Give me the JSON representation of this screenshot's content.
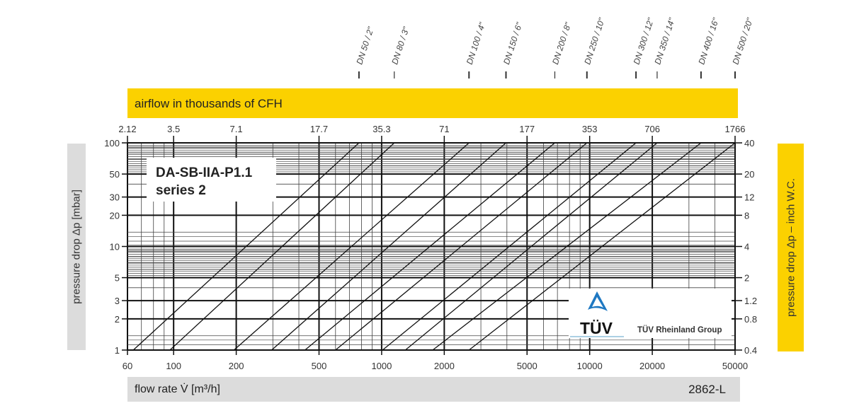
{
  "header": {
    "top_axis_title": "airflow in thousands of CFH"
  },
  "footer": {
    "x_axis_title": "flow rate V̇ [m³/h]",
    "code": "2862-L"
  },
  "logo": {
    "mark": "TÜV",
    "text": "TÜV Rheinland Group",
    "color": "#1e78c2"
  },
  "colors": {
    "accent_yellow": "#fbd100",
    "label_grey": "#dcdcdc"
  },
  "chart_data": {
    "type": "line",
    "title": "DA-SB-IIA-P1.1",
    "subtitle": "series 2",
    "xlabel": "flow rate V̇ [m³/h]",
    "ylabel": "pressure drop Δp [mbar]",
    "y2label": "pressure drop Δp – inch W.C.",
    "x2label": "airflow in thousands of CFH",
    "xscale": "log",
    "yscale": "log",
    "xlim": [
      60,
      50000
    ],
    "ylim": [
      1,
      100
    ],
    "grid": true,
    "x_ticks": [
      60,
      100,
      200,
      500,
      1000,
      2000,
      5000,
      10000,
      20000,
      50000
    ],
    "y_ticks": [
      1,
      2,
      3,
      5,
      10,
      20,
      30,
      50,
      100
    ],
    "x2_ticks": [
      {
        "label": "2.12",
        "at": 60
      },
      {
        "label": "3.5",
        "at": 100
      },
      {
        "label": "7.1",
        "at": 200
      },
      {
        "label": "17.7",
        "at": 500
      },
      {
        "label": "35.3",
        "at": 1000
      },
      {
        "label": "71",
        "at": 2000
      },
      {
        "label": "177",
        "at": 5000
      },
      {
        "label": "353",
        "at": 10000
      },
      {
        "label": "706",
        "at": 20000
      },
      {
        "label": "1766",
        "at": 50000
      }
    ],
    "y2_ticks": [
      {
        "label": "0.4",
        "at": 1
      },
      {
        "label": "0.8",
        "at": 2
      },
      {
        "label": "1.2",
        "at": 3
      },
      {
        "label": "2",
        "at": 5
      },
      {
        "label": "4",
        "at": 10
      },
      {
        "label": "8",
        "at": 20
      },
      {
        "label": "12",
        "at": 30
      },
      {
        "label": "20",
        "at": 50
      },
      {
        "label": "40",
        "at": 100
      }
    ],
    "series": [
      {
        "name": "DN 50 / 2\"",
        "points": [
          [
            64,
            1
          ],
          [
            778,
            100
          ]
        ]
      },
      {
        "name": "DN 80 / 3\"",
        "points": [
          [
            96,
            1
          ],
          [
            1150,
            100
          ]
        ]
      },
      {
        "name": "DN 100 / 4\"",
        "points": [
          [
            195,
            1
          ],
          [
            2630,
            100
          ]
        ]
      },
      {
        "name": "DN 150 / 6\"",
        "points": [
          [
            296,
            1
          ],
          [
            3960,
            100
          ]
        ]
      },
      {
        "name": "DN 200 / 8\"",
        "points": [
          [
            428,
            1
          ],
          [
            6800,
            100
          ]
        ]
      },
      {
        "name": "DN 250 / 10\"",
        "points": [
          [
            600,
            1
          ],
          [
            9700,
            100
          ]
        ]
      },
      {
        "name": "DN 300 / 12\"",
        "points": [
          [
            1010,
            1
          ],
          [
            16700,
            100
          ]
        ]
      },
      {
        "name": "DN 350 / 14\"",
        "points": [
          [
            1300,
            1
          ],
          [
            21100,
            100
          ]
        ]
      },
      {
        "name": "DN 400 / 16\"",
        "points": [
          [
            1760,
            1
          ],
          [
            34300,
            100
          ]
        ]
      },
      {
        "name": "DN 500 / 20\"",
        "points": [
          [
            2630,
            1
          ],
          [
            50000,
            100
          ]
        ]
      }
    ]
  }
}
